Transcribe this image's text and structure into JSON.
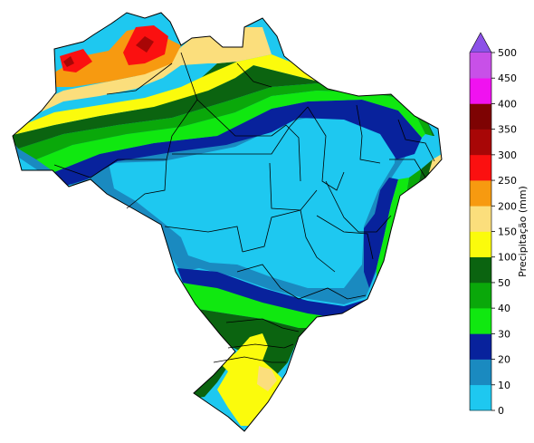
{
  "colorbar": {
    "label": "Precipitação (mm)",
    "extend": "max",
    "ticks": [
      "0",
      "10",
      "20",
      "30",
      "40",
      "50",
      "100",
      "150",
      "200",
      "250",
      "300",
      "350",
      "400",
      "450",
      "500"
    ],
    "bins": [
      {
        "from": 0,
        "to": 10,
        "color": "#1ec8f0"
      },
      {
        "from": 10,
        "to": 20,
        "color": "#1a8ac0"
      },
      {
        "from": 20,
        "to": 30,
        "color": "#08229c"
      },
      {
        "from": 30,
        "to": 40,
        "color": "#10e810"
      },
      {
        "from": 40,
        "to": 50,
        "color": "#0aa80a"
      },
      {
        "from": 50,
        "to": 100,
        "color": "#0b6410"
      },
      {
        "from": 100,
        "to": 150,
        "color": "#fbfb0c"
      },
      {
        "from": 150,
        "to": 200,
        "color": "#fbde7c"
      },
      {
        "from": 200,
        "to": 250,
        "color": "#f79a10"
      },
      {
        "from": 250,
        "to": 300,
        "color": "#fb1010"
      },
      {
        "from": 300,
        "to": 350,
        "color": "#a80606"
      },
      {
        "from": 350,
        "to": 400,
        "color": "#7e0303"
      },
      {
        "from": 400,
        "to": 450,
        "color": "#f012f0"
      },
      {
        "from": 450,
        "to": 500,
        "color": "#c850e8"
      }
    ],
    "extend_color": "#8c52e8"
  },
  "map": {
    "region": "Brazil",
    "variable": "precipitation",
    "border_color": "#000000"
  }
}
